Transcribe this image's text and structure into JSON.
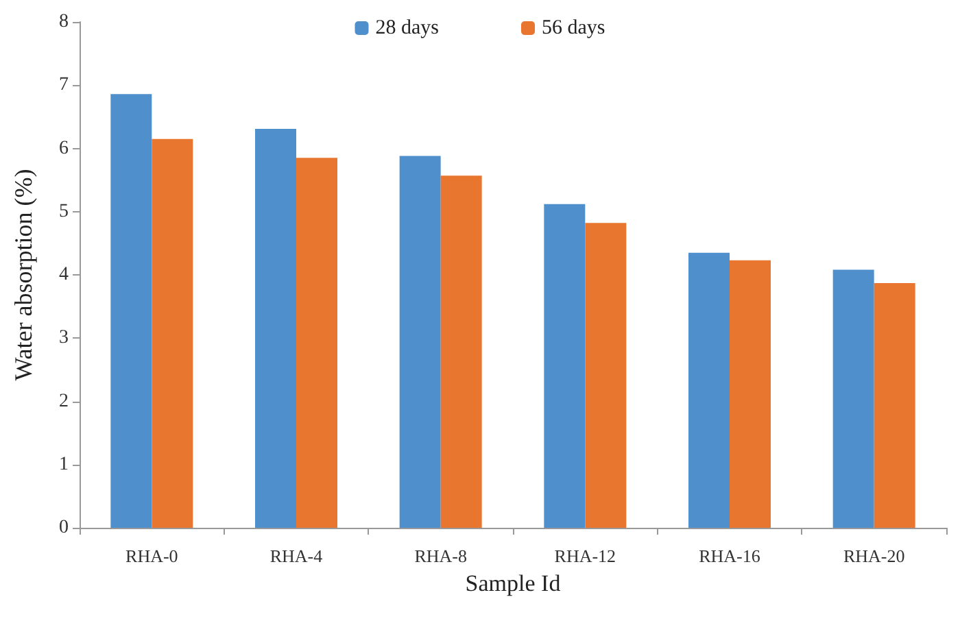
{
  "chart_data": {
    "type": "bar",
    "xlabel": "Sample Id",
    "ylabel": "Water absorption (%)",
    "categories": [
      "RHA-0",
      "RHA-4",
      "RHA-8",
      "RHA-12",
      "RHA-16",
      "RHA-20"
    ],
    "series": [
      {
        "name": "28 days",
        "color": "#4f8fcc",
        "values": [
          6.86,
          6.31,
          5.88,
          5.12,
          4.35,
          4.08
        ]
      },
      {
        "name": "56 days",
        "color": "#e8762f",
        "values": [
          6.15,
          5.85,
          5.57,
          4.82,
          4.23,
          3.87
        ]
      }
    ],
    "ylim": [
      0,
      8
    ],
    "yticks": [
      0,
      1,
      2,
      3,
      4,
      5,
      6,
      7,
      8
    ],
    "grid": false,
    "legend": "top"
  }
}
